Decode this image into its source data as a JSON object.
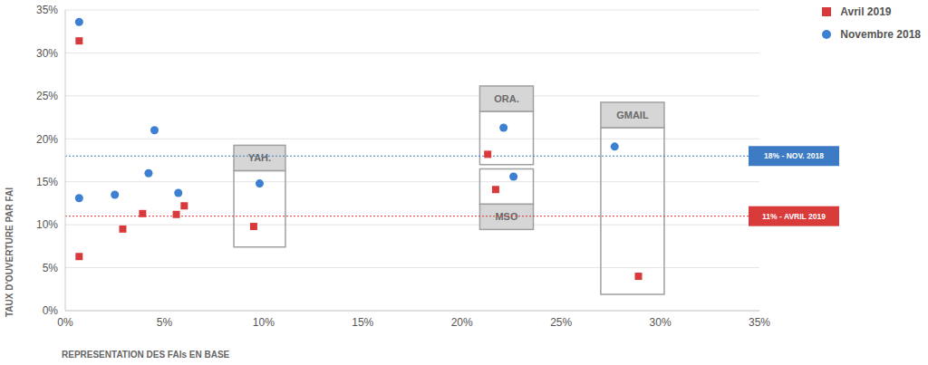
{
  "chart_data": {
    "type": "scatter",
    "x_label": "REPRESENTATION DES FAIs EN BASE",
    "y_label": "TAUX D'OUVERTURE PAR FAI",
    "xlim": [
      0,
      35
    ],
    "ylim": [
      0,
      35
    ],
    "xticks": [
      {
        "value": 0,
        "label": "0%"
      },
      {
        "value": 5,
        "label": "5%"
      },
      {
        "value": 10,
        "label": "10%"
      },
      {
        "value": 15,
        "label": "15%"
      },
      {
        "value": 20,
        "label": "20%"
      },
      {
        "value": 25,
        "label": "25%"
      },
      {
        "value": 30,
        "label": "30%"
      },
      {
        "value": 35,
        "label": "35%"
      }
    ],
    "yticks": [
      {
        "value": 0,
        "label": "0%"
      },
      {
        "value": 5,
        "label": "5%"
      },
      {
        "value": 10,
        "label": "10%"
      },
      {
        "value": 15,
        "label": "15%"
      },
      {
        "value": 20,
        "label": "20%"
      },
      {
        "value": 25,
        "label": "25%"
      },
      {
        "value": 30,
        "label": "30%"
      },
      {
        "value": 35,
        "label": "35%"
      }
    ],
    "grid": true,
    "legend": "top right",
    "series": [
      {
        "name": "Avril 2019",
        "color": "#d9393b",
        "marker": "square",
        "x": [
          0.7,
          0.7,
          2.9,
          3.9,
          5.6,
          6.0,
          9.5,
          21.3,
          21.7,
          28.9
        ],
        "values": [
          31.4,
          6.3,
          9.5,
          11.3,
          11.2,
          12.2,
          9.8,
          18.2,
          14.1,
          4.0
        ]
      },
      {
        "name": "Novembre 2018",
        "color": "#3d7fd1",
        "marker": "circle",
        "x": [
          0.7,
          0.7,
          2.5,
          4.5,
          4.2,
          5.7,
          9.8,
          22.1,
          22.6,
          27.7
        ],
        "values": [
          33.6,
          13.1,
          13.5,
          21.0,
          16.0,
          13.7,
          14.8,
          21.3,
          15.6,
          19.1
        ]
      }
    ],
    "reference_lines": [
      {
        "value": 18,
        "label": "18% - NOV. 2018",
        "color": "#3d7bc4"
      },
      {
        "value": 11,
        "label": "11% - AVRIL 2019",
        "color": "#d93a3a"
      }
    ],
    "annotations": [
      {
        "text": "YAH.",
        "x": [
          8.5,
          11.1
        ],
        "y": [
          7.4,
          16.3
        ]
      },
      {
        "text": "ORA.",
        "x": [
          20.9,
          23.6
        ],
        "y": [
          17.0,
          23.2
        ]
      },
      {
        "text": "MSO",
        "x": [
          20.9,
          23.6
        ],
        "y": [
          12.4,
          16.5
        ]
      },
      {
        "text": "GMAIL",
        "x": [
          27.0,
          30.2
        ],
        "y": [
          1.9,
          21.3
        ]
      }
    ]
  }
}
